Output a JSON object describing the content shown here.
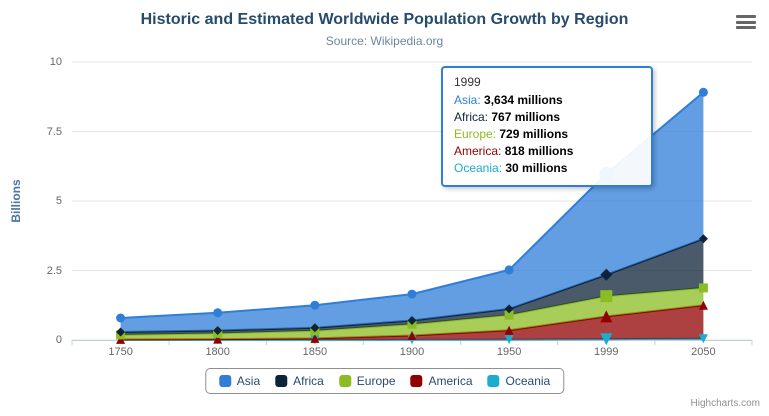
{
  "credits": {
    "label": "Highcharts.com"
  },
  "tooltip": {
    "header": "1999",
    "border_color": "#2f7ed8",
    "rows": [
      {
        "label": "Asia",
        "value": "3,634 millions"
      },
      {
        "label": "Africa",
        "value": "767 millions"
      },
      {
        "label": "Europe",
        "value": "729 millions"
      },
      {
        "label": "America",
        "value": "818 millions"
      },
      {
        "label": "Oceania",
        "value": "30 millions"
      }
    ]
  },
  "chart_data": {
    "type": "area",
    "stacking": "normal",
    "title": "Historic and Estimated Worldwide Population Growth by Region",
    "subtitle": "Source: Wikipedia.org",
    "ylabel": "Billions",
    "values_unit": "millions",
    "grid": true,
    "legend_position": "bottom",
    "categories": [
      "1750",
      "1800",
      "1850",
      "1900",
      "1950",
      "1999",
      "2050"
    ],
    "ymax": 10,
    "yticks": [
      {
        "value": 0,
        "label": "0"
      },
      {
        "value": 2.5,
        "label": "2.5"
      },
      {
        "value": 5,
        "label": "5"
      },
      {
        "value": 7.5,
        "label": "7.5"
      },
      {
        "value": 10,
        "label": "10"
      }
    ],
    "hover_index": 5,
    "series": [
      {
        "name": "Asia",
        "color": "#2f7ed8",
        "marker": "circle",
        "values": [
          502,
          635,
          809,
          947,
          1402,
          3634,
          5268
        ]
      },
      {
        "name": "Africa",
        "color": "#0d233a",
        "marker": "diamond",
        "values": [
          106,
          107,
          111,
          133,
          221,
          767,
          1766
        ]
      },
      {
        "name": "Europe",
        "color": "#8bbc21",
        "marker": "square",
        "values": [
          163,
          203,
          276,
          408,
          547,
          729,
          628
        ]
      },
      {
        "name": "America",
        "color": "#910000",
        "marker": "triangle",
        "values": [
          18,
          31,
          54,
          156,
          339,
          818,
          1201
        ]
      },
      {
        "name": "Oceania",
        "color": "#1aadce",
        "marker": "triangle-down",
        "values": [
          2,
          2,
          2,
          6,
          13,
          30,
          46
        ]
      }
    ]
  }
}
